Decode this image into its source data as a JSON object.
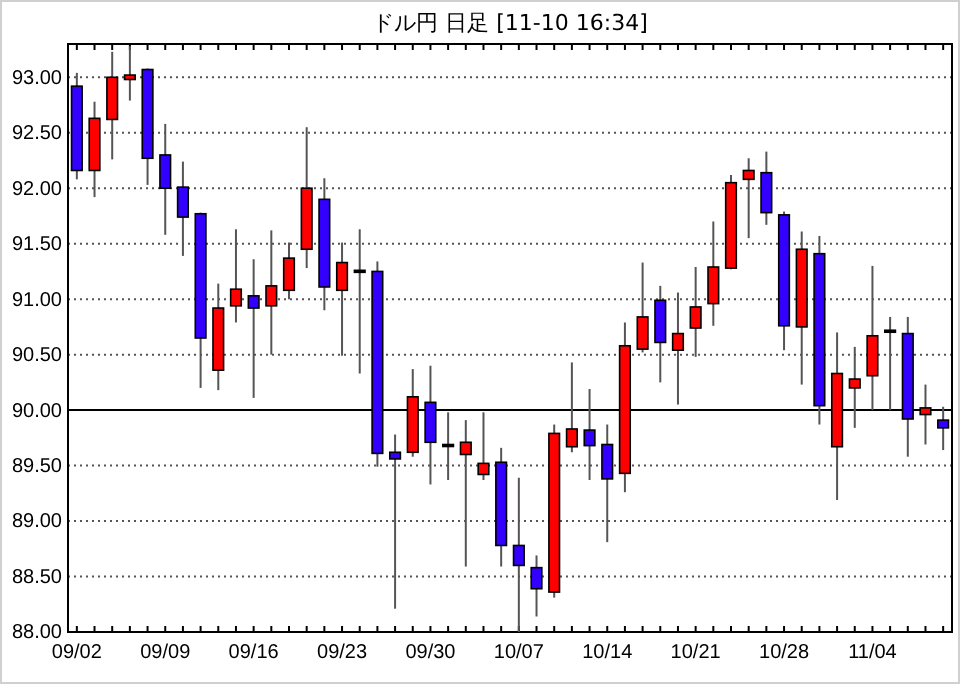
{
  "chart_data": {
    "type": "candlestick",
    "title": "ドル円 日足 [11-10 16:34]",
    "categories": [
      "09/02",
      null,
      null,
      null,
      null,
      "09/09",
      null,
      null,
      null,
      null,
      "09/16",
      null,
      null,
      null,
      null,
      "09/23",
      null,
      null,
      null,
      null,
      "09/30",
      null,
      null,
      null,
      null,
      "10/07",
      null,
      null,
      null,
      null,
      "10/14",
      null,
      null,
      null,
      null,
      "10/21",
      null,
      null,
      null,
      null,
      "10/28",
      null,
      null,
      null,
      null,
      "11/04",
      null,
      null,
      null,
      null
    ],
    "ohlc": [
      [
        92.92,
        93.04,
        92.08,
        92.16
      ],
      [
        92.16,
        92.78,
        91.92,
        92.63
      ],
      [
        92.62,
        93.23,
        92.26,
        93.0
      ],
      [
        92.98,
        93.28,
        92.79,
        93.02
      ],
      [
        93.07,
        93.08,
        92.03,
        92.27
      ],
      [
        92.3,
        92.58,
        91.58,
        92.0
      ],
      [
        92.01,
        92.24,
        91.39,
        91.74
      ],
      [
        91.77,
        91.78,
        90.2,
        90.65
      ],
      [
        90.36,
        91.14,
        90.18,
        90.92
      ],
      [
        90.94,
        91.63,
        90.79,
        91.09
      ],
      [
        91.03,
        91.36,
        90.11,
        90.92
      ],
      [
        90.94,
        91.62,
        90.5,
        91.12
      ],
      [
        91.08,
        91.51,
        91.0,
        91.37
      ],
      [
        91.45,
        92.55,
        91.28,
        92.0
      ],
      [
        91.9,
        92.09,
        90.9,
        91.11
      ],
      [
        91.08,
        91.51,
        90.49,
        91.33
      ],
      [
        91.26,
        91.63,
        90.33,
        91.26
      ],
      [
        91.25,
        91.34,
        89.49,
        89.61
      ],
      [
        89.62,
        89.78,
        88.21,
        89.56
      ],
      [
        89.62,
        90.37,
        89.58,
        90.12
      ],
      [
        90.07,
        90.4,
        89.33,
        89.71
      ],
      [
        89.69,
        89.98,
        89.37,
        89.69
      ],
      [
        89.6,
        89.91,
        88.59,
        89.71
      ],
      [
        89.42,
        89.98,
        89.37,
        89.52
      ],
      [
        89.53,
        89.66,
        88.59,
        88.78
      ],
      [
        88.78,
        89.39,
        88.0,
        88.6
      ],
      [
        88.58,
        88.69,
        88.14,
        88.39
      ],
      [
        88.36,
        89.87,
        88.31,
        89.79
      ],
      [
        89.67,
        90.43,
        89.62,
        89.83
      ],
      [
        89.82,
        90.19,
        89.37,
        89.68
      ],
      [
        89.69,
        89.87,
        88.81,
        89.38
      ],
      [
        89.43,
        90.79,
        89.26,
        90.58
      ],
      [
        90.55,
        91.33,
        90.52,
        90.84
      ],
      [
        90.99,
        91.12,
        90.25,
        90.61
      ],
      [
        90.54,
        91.06,
        90.05,
        90.69
      ],
      [
        90.74,
        91.29,
        90.48,
        90.93
      ],
      [
        90.96,
        91.7,
        90.76,
        91.29
      ],
      [
        91.28,
        92.12,
        91.27,
        92.05
      ],
      [
        92.08,
        92.27,
        91.55,
        92.16
      ],
      [
        92.14,
        92.33,
        91.67,
        91.78
      ],
      [
        91.76,
        91.79,
        90.54,
        90.76
      ],
      [
        90.75,
        91.61,
        90.23,
        91.45
      ],
      [
        91.41,
        91.57,
        89.87,
        90.04
      ],
      [
        89.67,
        90.7,
        89.19,
        90.33
      ],
      [
        90.2,
        90.57,
        89.84,
        90.28
      ],
      [
        90.31,
        91.3,
        90.0,
        90.67
      ],
      [
        90.72,
        90.84,
        90.0,
        90.72
      ],
      [
        90.69,
        90.84,
        89.58,
        89.92
      ],
      [
        89.96,
        90.23,
        89.69,
        90.02
      ],
      [
        89.91,
        90.03,
        89.64,
        89.84
      ]
    ],
    "colors": [
      "#3300ff",
      "#ff0000",
      "#ff0000",
      "#ff0000",
      "#3300ff",
      "#3300ff",
      "#3300ff",
      "#3300ff",
      "#ff0000",
      "#ff0000",
      "#3300ff",
      "#ff0000",
      "#ff0000",
      "#ff0000",
      "#3300ff",
      "#ff0000",
      "#000000",
      "#3300ff",
      "#3300ff",
      "#ff0000",
      "#3300ff",
      "#000000",
      "#ff0000",
      "#ff0000",
      "#3300ff",
      "#3300ff",
      "#3300ff",
      "#ff0000",
      "#ff0000",
      "#3300ff",
      "#3300ff",
      "#ff0000",
      "#ff0000",
      "#3300ff",
      "#ff0000",
      "#ff0000",
      "#ff0000",
      "#ff0000",
      "#ff0000",
      "#3300ff",
      "#3300ff",
      "#ff0000",
      "#3300ff",
      "#ff0000",
      "#ff0000",
      "#ff0000",
      "#000000",
      "#3300ff",
      "#ff0000",
      "#3300ff"
    ],
    "ylim": [
      88,
      93.3
    ],
    "yticks": [
      {
        "value": 88,
        "label": "88.00"
      },
      {
        "value": 88.5,
        "label": "88.50"
      },
      {
        "value": 89,
        "label": "89.00"
      },
      {
        "value": 89.5,
        "label": "89.50"
      },
      {
        "value": 90,
        "label": "90.00"
      },
      {
        "value": 90.5,
        "label": "90.50"
      },
      {
        "value": 91,
        "label": "91.00"
      },
      {
        "value": 91.5,
        "label": "91.50"
      },
      {
        "value": 92,
        "label": "92.00"
      },
      {
        "value": 92.5,
        "label": "92.50"
      },
      {
        "value": 93,
        "label": "93.00"
      }
    ],
    "grid": "y",
    "ref_lines": [
      {
        "axis": "y",
        "value": 90,
        "color": "#000000",
        "line_style": "solid"
      }
    ]
  }
}
